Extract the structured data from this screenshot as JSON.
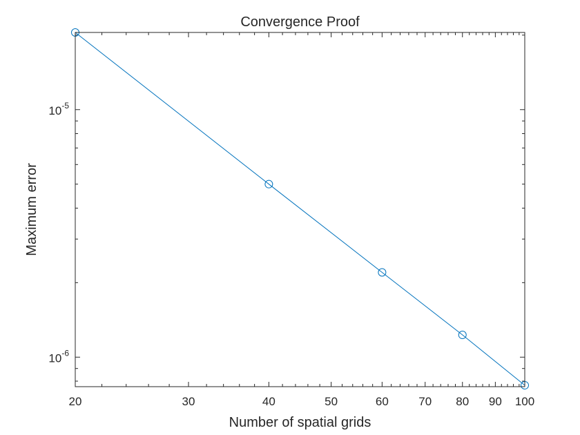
{
  "chart_data": {
    "type": "line",
    "title": "Convergence Proof",
    "xlabel": "Number of spatial grids",
    "ylabel": "Maximum error",
    "xscale": "log",
    "yscale": "log",
    "xlim": [
      20,
      100
    ],
    "ylim": [
      7.6e-07,
      2.05e-05
    ],
    "grid": false,
    "marker": "circle",
    "color": "#0072BD",
    "x_ticks": [
      {
        "value": 20,
        "label": "20"
      },
      {
        "value": 30,
        "label": "30"
      },
      {
        "value": 40,
        "label": "40"
      },
      {
        "value": 50,
        "label": "50"
      },
      {
        "value": 60,
        "label": "60"
      },
      {
        "value": 70,
        "label": "70"
      },
      {
        "value": 80,
        "label": "80"
      },
      {
        "value": 90,
        "label": "90"
      },
      {
        "value": 100,
        "label": "100"
      }
    ],
    "y_ticks": [
      {
        "value": 1e-06,
        "base": "10",
        "exp": "-6"
      },
      {
        "value": 1e-05,
        "base": "10",
        "exp": "-5"
      }
    ],
    "series": [
      {
        "x": [
          20,
          40,
          60,
          80,
          100
        ],
        "y": [
          2.05e-05,
          5e-06,
          2.2e-06,
          1.23e-06,
          7.7e-07
        ]
      }
    ]
  }
}
